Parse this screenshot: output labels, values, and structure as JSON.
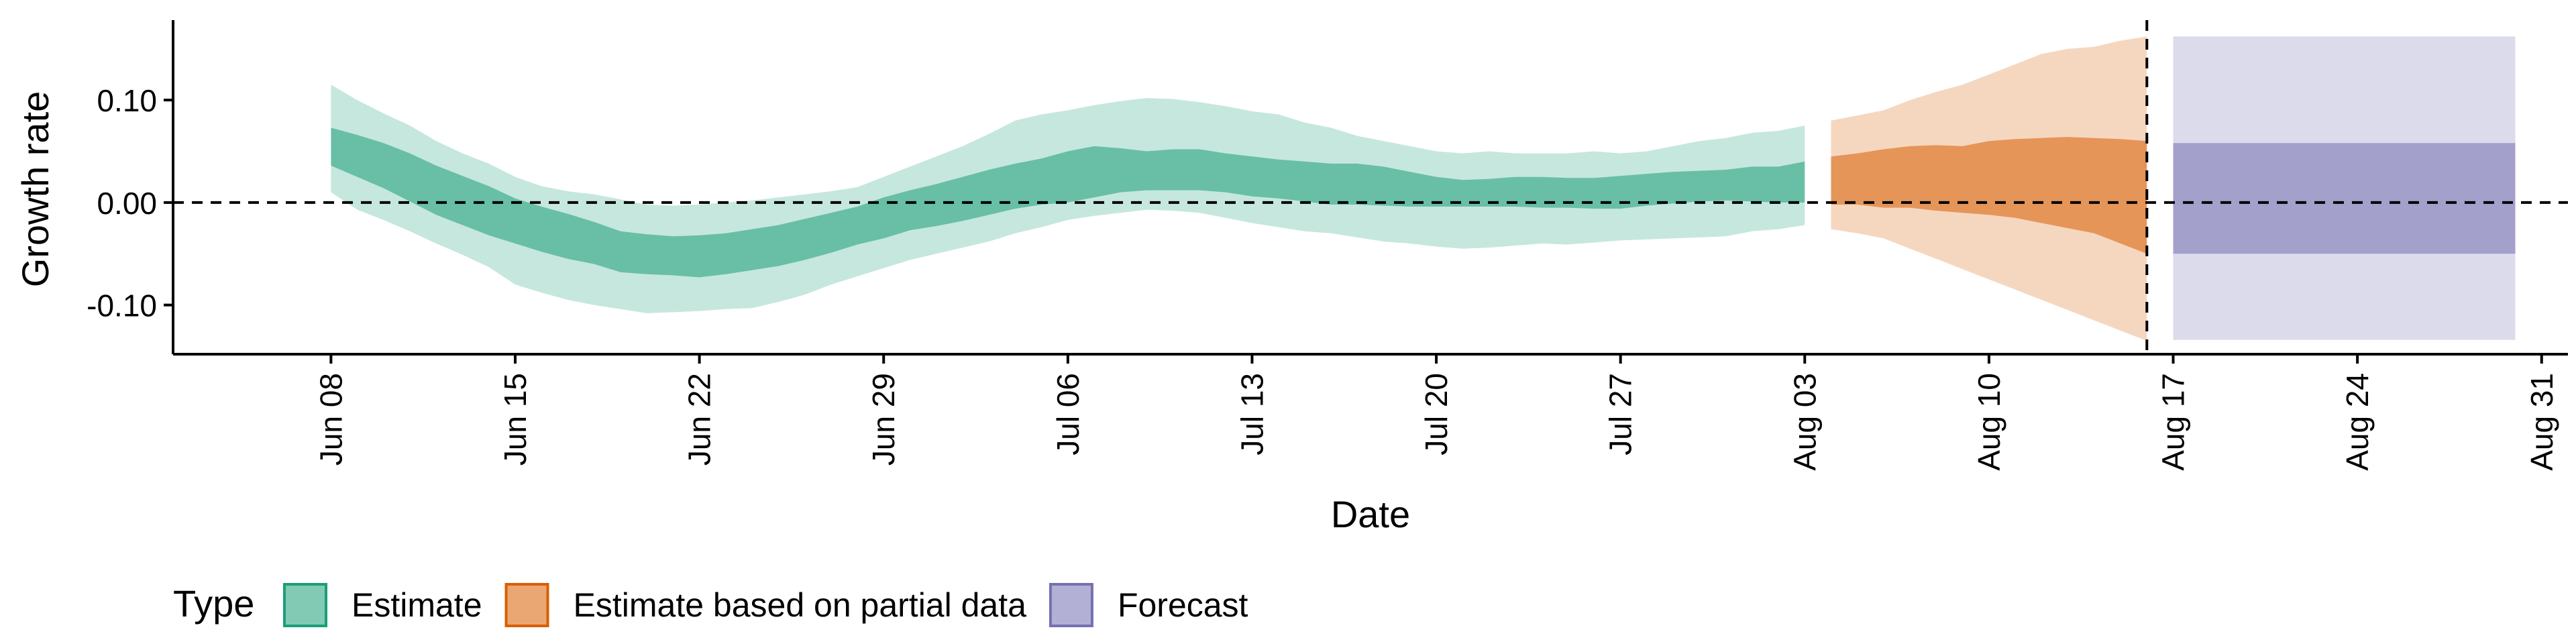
{
  "chart_data": {
    "type": "area",
    "xlabel": "Date",
    "ylabel": "Growth rate",
    "ylim": [
      -0.148,
      0.178
    ],
    "yticks": [
      -0.1,
      0.0,
      0.1
    ],
    "ytick_labels": [
      "-0.10",
      "0.00",
      "0.10"
    ],
    "xlim": [
      "2020-06-02",
      "2020-09-01"
    ],
    "xticks": [
      "2020-06-08",
      "2020-06-15",
      "2020-06-22",
      "2020-06-29",
      "2020-07-06",
      "2020-07-13",
      "2020-07-20",
      "2020-07-27",
      "2020-08-03",
      "2020-08-10",
      "2020-08-17",
      "2020-08-24",
      "2020-08-31"
    ],
    "xtick_labels": [
      "Jun 08",
      "Jun 15",
      "Jun 22",
      "Jun 29",
      "Jul 06",
      "Jul 13",
      "Jul 20",
      "Jul 27",
      "Aug 03",
      "Aug 10",
      "Aug 17",
      "Aug 24",
      "Aug 31"
    ],
    "reference_lines": {
      "hline_y": 0,
      "vline_date": "2020-08-16"
    },
    "legend": {
      "title": "Type",
      "position": "bottom-left",
      "entries": [
        {
          "label": "Estimate",
          "color": "#1b9e77"
        },
        {
          "label": "Estimate based on partial data",
          "color": "#d95f02"
        },
        {
          "label": "Forecast",
          "color": "#7570b3"
        }
      ]
    },
    "series": [
      {
        "name": "Estimate",
        "color": "#1b9e77",
        "x": [
          "2020-06-08",
          "2020-06-09",
          "2020-06-10",
          "2020-06-11",
          "2020-06-12",
          "2020-06-13",
          "2020-06-14",
          "2020-06-15",
          "2020-06-16",
          "2020-06-17",
          "2020-06-18",
          "2020-06-19",
          "2020-06-20",
          "2020-06-21",
          "2020-06-22",
          "2020-06-23",
          "2020-06-24",
          "2020-06-25",
          "2020-06-26",
          "2020-06-27",
          "2020-06-28",
          "2020-06-29",
          "2020-06-30",
          "2020-07-01",
          "2020-07-02",
          "2020-07-03",
          "2020-07-04",
          "2020-07-05",
          "2020-07-06",
          "2020-07-07",
          "2020-07-08",
          "2020-07-09",
          "2020-07-10",
          "2020-07-11",
          "2020-07-12",
          "2020-07-13",
          "2020-07-14",
          "2020-07-15",
          "2020-07-16",
          "2020-07-17",
          "2020-07-18",
          "2020-07-19",
          "2020-07-20",
          "2020-07-21",
          "2020-07-22",
          "2020-07-23",
          "2020-07-24",
          "2020-07-25",
          "2020-07-26",
          "2020-07-27",
          "2020-07-28",
          "2020-07-29",
          "2020-07-30",
          "2020-07-31",
          "2020-08-01",
          "2020-08-02",
          "2020-08-03"
        ],
        "lower90": [
          0.01,
          -0.007,
          -0.017,
          -0.028,
          -0.04,
          -0.051,
          -0.063,
          -0.08,
          -0.088,
          -0.095,
          -0.1,
          -0.104,
          -0.108,
          -0.107,
          -0.106,
          -0.104,
          -0.103,
          -0.097,
          -0.09,
          -0.08,
          -0.072,
          -0.064,
          -0.056,
          -0.05,
          -0.044,
          -0.038,
          -0.03,
          -0.024,
          -0.017,
          -0.013,
          -0.01,
          -0.007,
          -0.008,
          -0.01,
          -0.015,
          -0.02,
          -0.024,
          -0.028,
          -0.03,
          -0.034,
          -0.038,
          -0.04,
          -0.043,
          -0.045,
          -0.044,
          -0.042,
          -0.04,
          -0.041,
          -0.039,
          -0.037,
          -0.036,
          -0.035,
          -0.034,
          -0.033,
          -0.028,
          -0.026,
          -0.022
        ],
        "upper90": [
          0.115,
          0.1,
          0.087,
          0.075,
          0.06,
          0.048,
          0.038,
          0.025,
          0.016,
          0.011,
          0.008,
          0.003,
          -0.002,
          -0.003,
          -0.002,
          0.0,
          0.002,
          0.005,
          0.008,
          0.011,
          0.015,
          0.025,
          0.035,
          0.045,
          0.055,
          0.067,
          0.08,
          0.086,
          0.09,
          0.095,
          0.099,
          0.102,
          0.101,
          0.098,
          0.094,
          0.089,
          0.086,
          0.078,
          0.073,
          0.065,
          0.06,
          0.055,
          0.05,
          0.048,
          0.05,
          0.048,
          0.048,
          0.048,
          0.05,
          0.048,
          0.05,
          0.055,
          0.06,
          0.063,
          0.068,
          0.07,
          0.075
        ],
        "lower50": [
          0.036,
          0.025,
          0.014,
          0.001,
          -0.012,
          -0.022,
          -0.032,
          -0.04,
          -0.048,
          -0.055,
          -0.06,
          -0.068,
          -0.07,
          -0.071,
          -0.073,
          -0.07,
          -0.066,
          -0.062,
          -0.056,
          -0.049,
          -0.041,
          -0.035,
          -0.027,
          -0.023,
          -0.018,
          -0.012,
          -0.006,
          -0.002,
          0.0,
          0.005,
          0.01,
          0.012,
          0.012,
          0.012,
          0.01,
          0.006,
          0.004,
          0.001,
          -0.002,
          -0.002,
          -0.003,
          -0.004,
          -0.004,
          -0.004,
          -0.004,
          -0.004,
          -0.005,
          -0.005,
          -0.006,
          -0.006,
          -0.003,
          -0.001,
          0.001,
          0.002,
          0.001,
          0.0,
          0.0
        ],
        "upper50": [
          0.073,
          0.066,
          0.058,
          0.048,
          0.036,
          0.026,
          0.016,
          0.004,
          -0.004,
          -0.011,
          -0.019,
          -0.028,
          -0.031,
          -0.033,
          -0.032,
          -0.03,
          -0.026,
          -0.022,
          -0.016,
          -0.01,
          -0.004,
          0.005,
          0.012,
          0.018,
          0.025,
          0.032,
          0.038,
          0.043,
          0.05,
          0.055,
          0.053,
          0.05,
          0.052,
          0.052,
          0.048,
          0.045,
          0.042,
          0.04,
          0.038,
          0.038,
          0.035,
          0.03,
          0.025,
          0.022,
          0.023,
          0.025,
          0.025,
          0.024,
          0.024,
          0.026,
          0.028,
          0.03,
          0.031,
          0.032,
          0.035,
          0.035,
          0.04
        ]
      },
      {
        "name": "Estimate based on partial data",
        "color": "#d95f02",
        "x": [
          "2020-08-04",
          "2020-08-05",
          "2020-08-06",
          "2020-08-07",
          "2020-08-08",
          "2020-08-09",
          "2020-08-10",
          "2020-08-11",
          "2020-08-12",
          "2020-08-13",
          "2020-08-14",
          "2020-08-15",
          "2020-08-16"
        ],
        "lower90": [
          -0.026,
          -0.03,
          -0.035,
          -0.045,
          -0.055,
          -0.065,
          -0.075,
          -0.085,
          -0.095,
          -0.105,
          -0.115,
          -0.125,
          -0.135
        ],
        "upper90": [
          0.08,
          0.085,
          0.09,
          0.1,
          0.108,
          0.115,
          0.125,
          0.135,
          0.145,
          0.15,
          0.152,
          0.158,
          0.162
        ],
        "lower50": [
          -0.002,
          -0.002,
          -0.005,
          -0.005,
          -0.008,
          -0.01,
          -0.012,
          -0.015,
          -0.02,
          -0.025,
          -0.03,
          -0.04,
          -0.05
        ],
        "upper50": [
          0.045,
          0.048,
          0.052,
          0.055,
          0.056,
          0.055,
          0.06,
          0.062,
          0.063,
          0.064,
          0.063,
          0.062,
          0.06
        ]
      },
      {
        "name": "Forecast",
        "color": "#7570b3",
        "x": [
          "2020-08-17",
          "2020-08-30"
        ],
        "lower90": [
          -0.134,
          -0.134
        ],
        "upper90": [
          0.162,
          0.162
        ],
        "lower50": [
          -0.05,
          -0.05
        ],
        "upper50": [
          0.058,
          0.058
        ]
      }
    ]
  }
}
